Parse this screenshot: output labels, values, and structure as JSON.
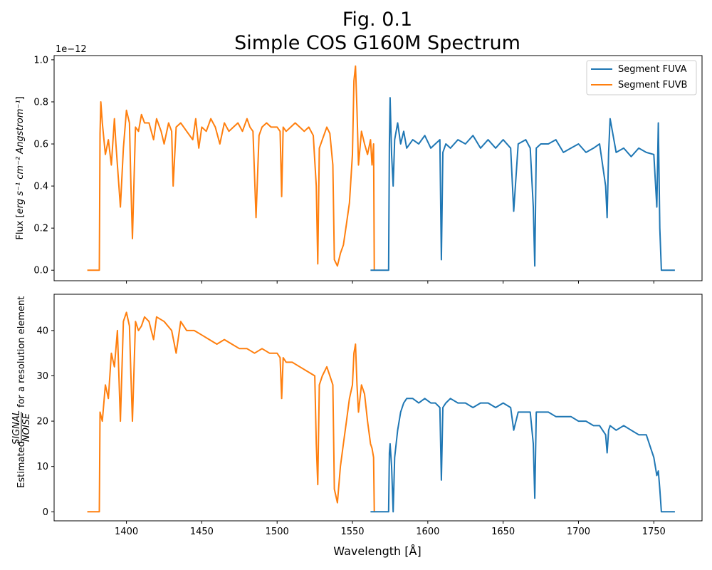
{
  "figure": {
    "title_line1": "Fig. 0.1",
    "title_line2": "Simple COS G160M Spectrum"
  },
  "colors": {
    "fuva": "#1f77b4",
    "fuvb": "#ff7f0e"
  },
  "chart_data": [
    {
      "type": "line",
      "name": "flux",
      "ylabel_main": "Flux [",
      "ylabel_units": "erg s⁻¹ cm⁻² Angstrom⁻¹",
      "ylabel_close": "]",
      "offset_text": "1e−12",
      "xlim": [
        1352,
        1782
      ],
      "ylim": [
        -0.05,
        1.02
      ],
      "xticks": [
        1400,
        1450,
        1500,
        1550,
        1600,
        1650,
        1700,
        1750
      ],
      "yticks": [
        "0.0",
        "0.2",
        "0.4",
        "0.6",
        "0.8",
        "1.0"
      ],
      "ytick_values": [
        0.0,
        0.2,
        0.4,
        0.6,
        0.8,
        1.0
      ],
      "legend": {
        "placement": "top-right",
        "entries": [
          "Segment FUVA",
          "Segment FUVB"
        ]
      },
      "series": [
        {
          "name": "Segment FUVB",
          "x": [
            1374,
            1382,
            1382.5,
            1383,
            1384,
            1386,
            1388,
            1390,
            1392,
            1393,
            1394,
            1396,
            1398,
            1400,
            1402,
            1403,
            1404,
            1406,
            1408,
            1410,
            1412,
            1415,
            1418,
            1420,
            1423,
            1425,
            1428,
            1430,
            1431,
            1433,
            1436,
            1440,
            1444,
            1446,
            1448,
            1450,
            1453,
            1456,
            1459,
            1462,
            1465,
            1468,
            1471,
            1474,
            1477,
            1480,
            1482,
            1484,
            1486,
            1488,
            1490,
            1493,
            1496,
            1500,
            1502,
            1503,
            1504,
            1506,
            1509,
            1512,
            1515,
            1518,
            1521,
            1524,
            1526,
            1527,
            1528,
            1530,
            1533,
            1535,
            1537,
            1538,
            1540,
            1542,
            1544,
            1546,
            1548,
            1550,
            1551,
            1552,
            1553,
            1554,
            1556,
            1558,
            1560,
            1562,
            1563,
            1564,
            1564.5
          ],
          "values": [
            0,
            0,
            0.65,
            0.8,
            0.7,
            0.55,
            0.62,
            0.5,
            0.72,
            0.6,
            0.5,
            0.3,
            0.58,
            0.76,
            0.7,
            0.4,
            0.15,
            0.68,
            0.66,
            0.74,
            0.7,
            0.7,
            0.62,
            0.72,
            0.66,
            0.6,
            0.7,
            0.66,
            0.4,
            0.68,
            0.7,
            0.66,
            0.62,
            0.72,
            0.58,
            0.68,
            0.66,
            0.72,
            0.68,
            0.6,
            0.7,
            0.66,
            0.68,
            0.7,
            0.66,
            0.72,
            0.68,
            0.66,
            0.25,
            0.64,
            0.68,
            0.7,
            0.68,
            0.68,
            0.66,
            0.35,
            0.68,
            0.66,
            0.68,
            0.7,
            0.68,
            0.66,
            0.68,
            0.64,
            0.4,
            0.03,
            0.58,
            0.62,
            0.68,
            0.65,
            0.5,
            0.05,
            0.02,
            0.08,
            0.12,
            0.22,
            0.32,
            0.55,
            0.9,
            0.97,
            0.76,
            0.5,
            0.66,
            0.6,
            0.55,
            0.62,
            0.5,
            0.6,
            0
          ]
        },
        {
          "name": "Segment FUVA",
          "x": [
            1562,
            1574,
            1574.5,
            1575,
            1576,
            1577,
            1578,
            1580,
            1582,
            1584,
            1586,
            1590,
            1594,
            1598,
            1602,
            1605,
            1608,
            1609,
            1610,
            1612,
            1615,
            1620,
            1625,
            1630,
            1635,
            1640,
            1645,
            1650,
            1655,
            1657,
            1660,
            1665,
            1668,
            1670,
            1671,
            1672,
            1675,
            1680,
            1685,
            1690,
            1695,
            1700,
            1705,
            1710,
            1714,
            1718,
            1719,
            1720,
            1721,
            1725,
            1730,
            1735,
            1740,
            1745,
            1750,
            1752,
            1753,
            1754,
            1755,
            1764
          ],
          "values": [
            0,
            0,
            0.6,
            0.82,
            0.55,
            0.4,
            0.62,
            0.7,
            0.6,
            0.66,
            0.58,
            0.62,
            0.6,
            0.64,
            0.58,
            0.6,
            0.62,
            0.05,
            0.56,
            0.6,
            0.58,
            0.62,
            0.6,
            0.64,
            0.58,
            0.62,
            0.58,
            0.62,
            0.58,
            0.28,
            0.6,
            0.62,
            0.58,
            0.3,
            0.02,
            0.58,
            0.6,
            0.6,
            0.62,
            0.56,
            0.58,
            0.6,
            0.56,
            0.58,
            0.6,
            0.4,
            0.25,
            0.56,
            0.72,
            0.56,
            0.58,
            0.54,
            0.58,
            0.56,
            0.55,
            0.3,
            0.7,
            0.2,
            0,
            0
          ]
        }
      ]
    },
    {
      "type": "line",
      "name": "snr",
      "ylabel_prefix": "Estimated",
      "ylabel_num": "SIGNAL",
      "ylabel_den": "NOISE",
      "ylabel_suffix": "for a resolution element",
      "xlabel": "Wavelength [Å]",
      "xlim": [
        1352,
        1782
      ],
      "ylim": [
        -2,
        48
      ],
      "xticks": [
        1400,
        1450,
        1500,
        1550,
        1600,
        1650,
        1700,
        1750
      ],
      "yticks": [
        "0",
        "10",
        "20",
        "30",
        "40"
      ],
      "ytick_values": [
        0,
        10,
        20,
        30,
        40
      ],
      "series": [
        {
          "name": "Segment FUVB",
          "x": [
            1374,
            1382,
            1382.5,
            1384,
            1386,
            1388,
            1390,
            1392,
            1394,
            1396,
            1398,
            1400,
            1402,
            1403,
            1404,
            1406,
            1408,
            1410,
            1412,
            1415,
            1418,
            1420,
            1425,
            1430,
            1433,
            1436,
            1440,
            1445,
            1450,
            1455,
            1460,
            1465,
            1470,
            1475,
            1480,
            1485,
            1490,
            1495,
            1500,
            1502,
            1503,
            1504,
            1506,
            1510,
            1515,
            1520,
            1525,
            1526,
            1527,
            1528,
            1530,
            1533,
            1535,
            1537,
            1538,
            1540,
            1542,
            1544,
            1546,
            1548,
            1550,
            1551,
            1552,
            1553,
            1554,
            1556,
            1558,
            1560,
            1562,
            1563,
            1564,
            1564.5
          ],
          "values": [
            0,
            0,
            22,
            20,
            28,
            25,
            35,
            32,
            40,
            20,
            42,
            44,
            41,
            30,
            20,
            42,
            40,
            41,
            43,
            42,
            38,
            43,
            42,
            40,
            35,
            42,
            40,
            40,
            39,
            38,
            37,
            38,
            37,
            36,
            36,
            35,
            36,
            35,
            35,
            34,
            25,
            34,
            33,
            33,
            32,
            31,
            30,
            15,
            6,
            28,
            30,
            32,
            30,
            28,
            5,
            2,
            10,
            15,
            20,
            25,
            28,
            35,
            37,
            28,
            22,
            28,
            26,
            20,
            15,
            14,
            12,
            0
          ]
        },
        {
          "name": "Segment FUVA",
          "x": [
            1562,
            1574,
            1574.5,
            1575,
            1576,
            1577,
            1578,
            1580,
            1582,
            1584,
            1586,
            1590,
            1594,
            1598,
            1602,
            1605,
            1608,
            1609,
            1610,
            1612,
            1615,
            1620,
            1625,
            1630,
            1635,
            1640,
            1645,
            1650,
            1655,
            1657,
            1660,
            1665,
            1668,
            1670,
            1671,
            1672,
            1675,
            1680,
            1685,
            1690,
            1695,
            1700,
            1705,
            1710,
            1714,
            1718,
            1719,
            1720,
            1721,
            1725,
            1730,
            1735,
            1740,
            1745,
            1748,
            1750,
            1752,
            1753,
            1754,
            1755,
            1764
          ],
          "values": [
            0,
            0,
            13,
            15,
            10,
            0,
            12,
            18,
            22,
            24,
            25,
            25,
            24,
            25,
            24,
            24,
            23,
            7,
            23,
            24,
            25,
            24,
            24,
            23,
            24,
            24,
            23,
            24,
            23,
            18,
            22,
            22,
            22,
            15,
            3,
            22,
            22,
            22,
            21,
            21,
            21,
            20,
            20,
            19,
            19,
            17,
            13,
            18,
            19,
            18,
            19,
            18,
            17,
            17,
            14,
            12,
            8,
            9,
            5,
            0,
            0
          ]
        }
      ]
    }
  ]
}
